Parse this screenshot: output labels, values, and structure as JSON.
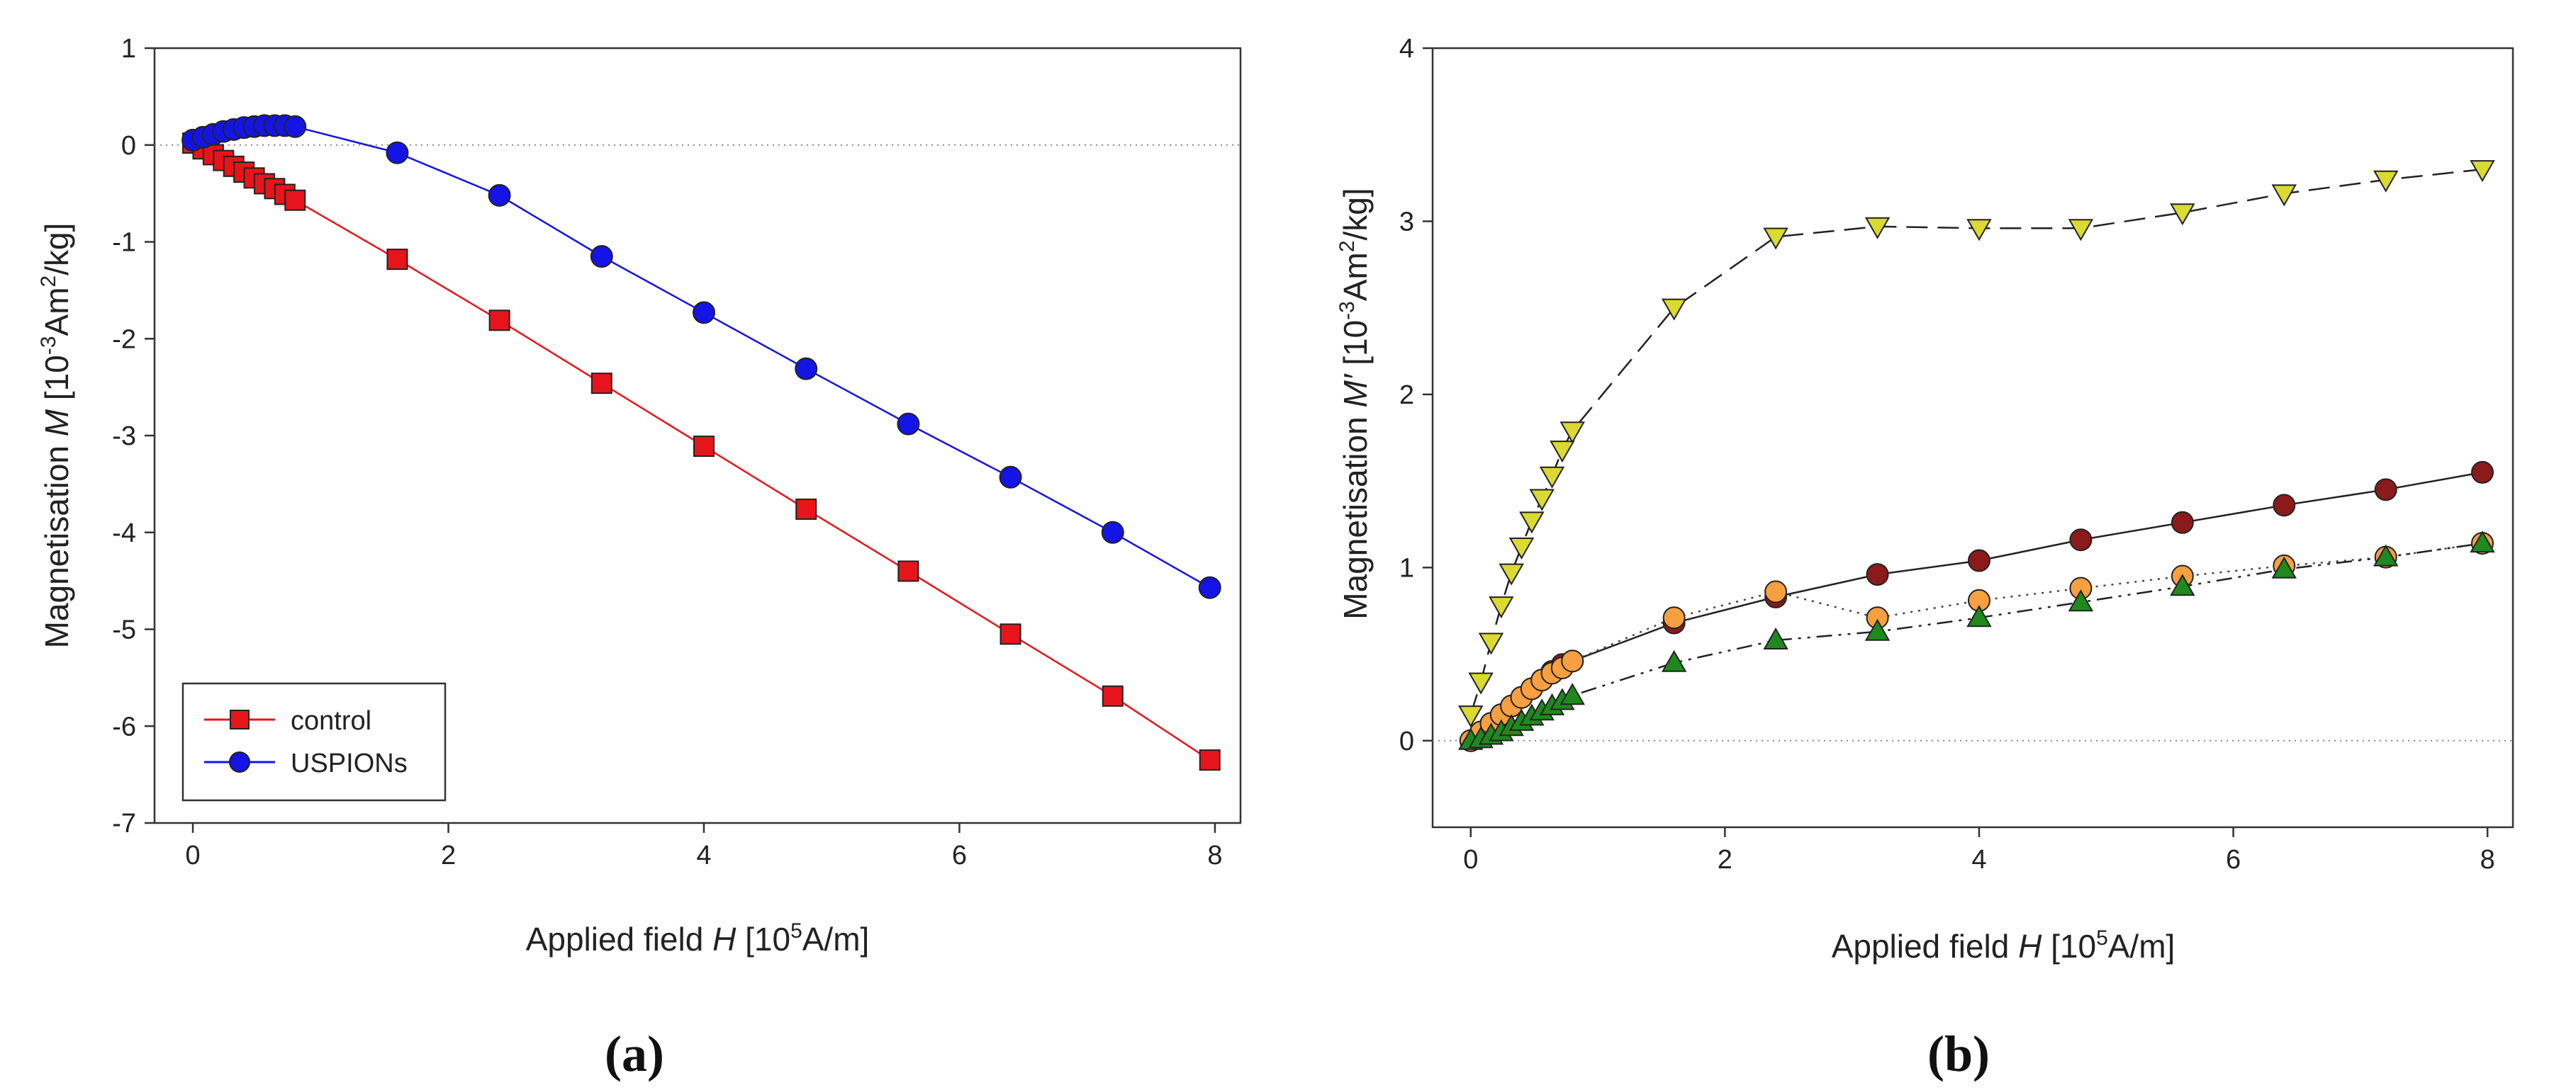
{
  "chart_data": [
    {
      "type": "line",
      "panel_label": "(a)",
      "xlabel": {
        "main": "Applied field ",
        "var": "H",
        "open": " [10",
        "sup": "5",
        "close": "A/m]"
      },
      "ylabel": {
        "main": "Magnetisation ",
        "var": "M",
        "open": " [10",
        "sup": "-3",
        "unit": "Am",
        "sup2": "2",
        "close": "/kg]"
      },
      "xlim": [
        -0.3,
        8.2
      ],
      "ylim": [
        -7,
        1
      ],
      "xticks": [
        "0",
        "2",
        "4",
        "6",
        "8"
      ],
      "yticks": [
        "1",
        "0",
        "-1",
        "-2",
        "-3",
        "-4",
        "-5",
        "-6",
        "-7"
      ],
      "zero_line": true,
      "legend_position": "bottom-left",
      "series": [
        {
          "name": "control",
          "marker": "square",
          "color": "#e8141b",
          "line_color": "#e8141b",
          "dash": "solid",
          "x": [
            0,
            0.08,
            0.16,
            0.24,
            0.32,
            0.4,
            0.48,
            0.56,
            0.64,
            0.72,
            0.8,
            1.6,
            2.4,
            3.2,
            4.0,
            4.8,
            5.6,
            6.4,
            7.2,
            7.96
          ],
          "y": [
            0.02,
            -0.04,
            -0.1,
            -0.16,
            -0.22,
            -0.28,
            -0.34,
            -0.4,
            -0.45,
            -0.51,
            -0.57,
            -1.18,
            -1.81,
            -2.46,
            -3.11,
            -3.76,
            -4.4,
            -5.05,
            -5.69,
            -6.35
          ]
        },
        {
          "name": "USPIONs",
          "marker": "circle",
          "color": "#1414e6",
          "line_color": "#1414e6",
          "dash": "solid",
          "x": [
            0,
            0.08,
            0.16,
            0.24,
            0.32,
            0.4,
            0.48,
            0.56,
            0.64,
            0.72,
            0.8,
            1.6,
            2.4,
            3.2,
            4.0,
            4.8,
            5.6,
            6.4,
            7.2,
            7.96
          ],
          "y": [
            0.05,
            0.08,
            0.11,
            0.14,
            0.16,
            0.18,
            0.19,
            0.2,
            0.2,
            0.2,
            0.19,
            -0.08,
            -0.52,
            -1.15,
            -1.73,
            -2.31,
            -2.88,
            -3.43,
            -4.0,
            -4.57
          ]
        }
      ]
    },
    {
      "type": "line",
      "panel_label": "(b)",
      "xlabel": {
        "main": "Applied field ",
        "var": "H",
        "open": " [10",
        "sup": "5",
        "close": "A/m]"
      },
      "ylabel": {
        "main": "Magnetisation ",
        "var": "M′",
        "open": " [10",
        "sup": "-3",
        "unit": "Am",
        "sup2": "2",
        "close": "/kg]"
      },
      "xlim": [
        -0.3,
        8.2
      ],
      "ylim": [
        -0.5,
        4
      ],
      "xticks": [
        "0",
        "2",
        "4",
        "6",
        "8"
      ],
      "yticks": [
        "4",
        "3",
        "2",
        "1",
        "0"
      ],
      "zero_line": true,
      "series": [
        {
          "name": "triangle-down",
          "marker": "triangle-down",
          "color": "#dada30",
          "line_color": "#222222",
          "dash": "long-dash",
          "x": [
            0,
            0.08,
            0.16,
            0.24,
            0.32,
            0.4,
            0.48,
            0.56,
            0.64,
            0.72,
            0.8,
            1.6,
            2.4,
            3.2,
            4.0,
            4.8,
            5.6,
            6.4,
            7.2,
            7.96
          ],
          "y": [
            0.15,
            0.34,
            0.57,
            0.78,
            0.97,
            1.12,
            1.27,
            1.4,
            1.53,
            1.68,
            1.79,
            2.5,
            2.91,
            2.97,
            2.96,
            2.96,
            3.05,
            3.16,
            3.24,
            3.3
          ]
        },
        {
          "name": "circle-dark-red",
          "marker": "circle",
          "color": "#8b1a1a",
          "line_color": "#222222",
          "dash": "solid",
          "x": [
            0,
            0.08,
            0.16,
            0.24,
            0.32,
            0.4,
            0.48,
            0.56,
            0.64,
            0.72,
            0.8,
            1.6,
            2.4,
            3.2,
            4.0,
            4.8,
            5.6,
            6.4,
            7.2,
            7.96
          ],
          "y": [
            0.0,
            0.05,
            0.1,
            0.15,
            0.2,
            0.25,
            0.3,
            0.35,
            0.4,
            0.44,
            0.46,
            0.68,
            0.83,
            0.96,
            1.04,
            1.16,
            1.26,
            1.36,
            1.45,
            1.55
          ]
        },
        {
          "name": "circle-orange",
          "marker": "circle",
          "color": "#f7a040",
          "line_color": "#444444",
          "dash": "dotted",
          "x": [
            0,
            0.08,
            0.16,
            0.24,
            0.32,
            0.4,
            0.48,
            0.56,
            0.64,
            0.72,
            0.8,
            1.6,
            2.4,
            3.2,
            4.0,
            4.8,
            5.6,
            6.4,
            7.2,
            7.96
          ],
          "y": [
            0.0,
            0.05,
            0.1,
            0.15,
            0.2,
            0.25,
            0.3,
            0.35,
            0.39,
            0.42,
            0.46,
            0.71,
            0.86,
            0.71,
            0.81,
            0.88,
            0.95,
            1.01,
            1.06,
            1.14
          ]
        },
        {
          "name": "triangle-up",
          "marker": "triangle-up",
          "color": "#1e8a1e",
          "line_color": "#222222",
          "dash": "dash-dot-dot",
          "x": [
            0,
            0.08,
            0.16,
            0.24,
            0.32,
            0.4,
            0.48,
            0.56,
            0.64,
            0.72,
            0.8,
            1.6,
            2.4,
            3.2,
            4.0,
            4.8,
            5.6,
            6.4,
            7.2,
            7.96
          ],
          "y": [
            0.0,
            0.01,
            0.03,
            0.05,
            0.08,
            0.11,
            0.14,
            0.17,
            0.2,
            0.23,
            0.26,
            0.45,
            0.58,
            0.63,
            0.71,
            0.8,
            0.89,
            0.99,
            1.06,
            1.14
          ]
        }
      ]
    }
  ]
}
